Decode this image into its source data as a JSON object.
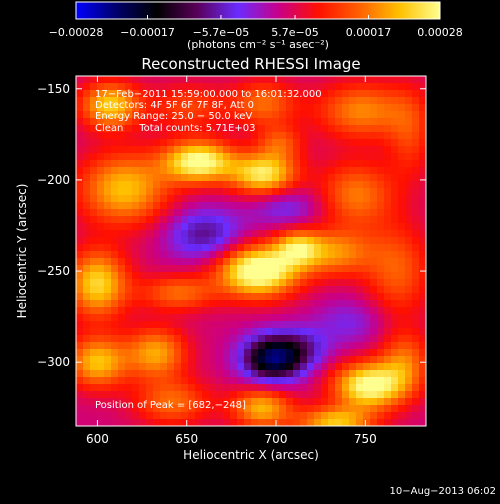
{
  "chart_data": {
    "type": "heatmap",
    "title": "Reconstructed RHESSI Image",
    "xlabel": "Heliocentric X (arcsec)",
    "ylabel": "Heliocentric Y (arcsec)",
    "xlim": [
      588,
      784
    ],
    "ylim": [
      -335,
      -143
    ],
    "x_ticks": [
      600,
      650,
      700,
      750
    ],
    "y_ticks": [
      -150,
      -200,
      -250,
      -300
    ],
    "x_ticks_labels": [
      "600",
      "650",
      "700",
      "750"
    ],
    "y_ticks_labels": [
      "−150",
      "−200",
      "−250",
      "−300"
    ],
    "colorbar": {
      "range": [
        -0.00028,
        0.00028
      ],
      "ticks": [
        -0.00028,
        -0.00017,
        -5.7e-05,
        5.7e-05,
        0.00017,
        0.00028
      ],
      "tick_labels": [
        "−0.00028",
        "−0.00017",
        "−5.7e−05",
        "5.7e−05",
        "0.00017",
        "0.00028"
      ],
      "unit_label": "(photons cm⁻² s⁻¹ asec⁻²)",
      "colors": [
        "#0000ff",
        "#00006a",
        "#000000",
        "#5a005a",
        "#6a2cff",
        "#c8008a",
        "#ff1000",
        "#ff6000",
        "#ffc000",
        "#ffff90"
      ]
    },
    "annotations": [
      "17−Feb−2011 15:59:00.000 to 16:01:32.000",
      "Detectors: 4F 5F 6F 7F 8F, Att 0",
      "Energy Range: 25.0 − 50.0 keV",
      "Clean     Total counts: 5.71E+03"
    ],
    "peak_label": "Position of Peak = [682,−248]",
    "peak": [
      682,
      -248
    ],
    "blobs": [
      {
        "x": 607,
        "y": -159,
        "v": 0.00019,
        "sx": 12,
        "sy": 9
      },
      {
        "x": 651,
        "y": -160,
        "v": 9e-05,
        "sx": 15,
        "sy": 9
      },
      {
        "x": 693,
        "y": -158,
        "v": 0.00012,
        "sx": 13,
        "sy": 9
      },
      {
        "x": 748,
        "y": -162,
        "v": 0.00014,
        "sx": 18,
        "sy": 11
      },
      {
        "x": 775,
        "y": -175,
        "v": 8e-05,
        "sx": 9,
        "sy": 18
      },
      {
        "x": 615,
        "y": -205,
        "v": 0.00018,
        "sx": 18,
        "sy": 14
      },
      {
        "x": 657,
        "y": -190,
        "v": 0.00025,
        "sx": 14,
        "sy": 8
      },
      {
        "x": 693,
        "y": -197,
        "v": 0.00022,
        "sx": 13,
        "sy": 8
      },
      {
        "x": 702,
        "y": -180,
        "v": 0.0001,
        "sx": 9,
        "sy": 7
      },
      {
        "x": 745,
        "y": -208,
        "v": 0.00013,
        "sx": 15,
        "sy": 13
      },
      {
        "x": 768,
        "y": -250,
        "v": 0.00011,
        "sx": 13,
        "sy": 18
      },
      {
        "x": 733,
        "y": -240,
        "v": 0.00014,
        "sx": 15,
        "sy": 9
      },
      {
        "x": 690,
        "y": -250,
        "v": 0.00028,
        "sx": 16,
        "sy": 10
      },
      {
        "x": 712,
        "y": -237,
        "v": 0.00015,
        "sx": 9,
        "sy": 7
      },
      {
        "x": 600,
        "y": -257,
        "v": 0.0002,
        "sx": 12,
        "sy": 13
      },
      {
        "x": 645,
        "y": -262,
        "v": 0.00012,
        "sx": 15,
        "sy": 7
      },
      {
        "x": 600,
        "y": -300,
        "v": 0.00018,
        "sx": 12,
        "sy": 10
      },
      {
        "x": 633,
        "y": -295,
        "v": 0.00016,
        "sx": 12,
        "sy": 10
      },
      {
        "x": 642,
        "y": -322,
        "v": 0.00012,
        "sx": 15,
        "sy": 9
      },
      {
        "x": 692,
        "y": -325,
        "v": 0.00017,
        "sx": 12,
        "sy": 8
      },
      {
        "x": 752,
        "y": -313,
        "v": 0.00025,
        "sx": 14,
        "sy": 9
      },
      {
        "x": 733,
        "y": -333,
        "v": 0.00018,
        "sx": 15,
        "sy": 6
      },
      {
        "x": 772,
        "y": -300,
        "v": 0.00012,
        "sx": 10,
        "sy": 12
      },
      {
        "x": 698,
        "y": -298,
        "v": -0.00025,
        "sx": 12,
        "sy": 9
      },
      {
        "x": 715,
        "y": -292,
        "v": -8e-05,
        "sx": 11,
        "sy": 8
      },
      {
        "x": 660,
        "y": -230,
        "v": -0.00012,
        "sx": 15,
        "sy": 10
      },
      {
        "x": 706,
        "y": -215,
        "v": -7e-05,
        "sx": 14,
        "sy": 8
      },
      {
        "x": 742,
        "y": -278,
        "v": -6e-05,
        "sx": 14,
        "sy": 9
      }
    ]
  },
  "footer": {
    "timestamp": "10−Aug−2013 06:02"
  }
}
